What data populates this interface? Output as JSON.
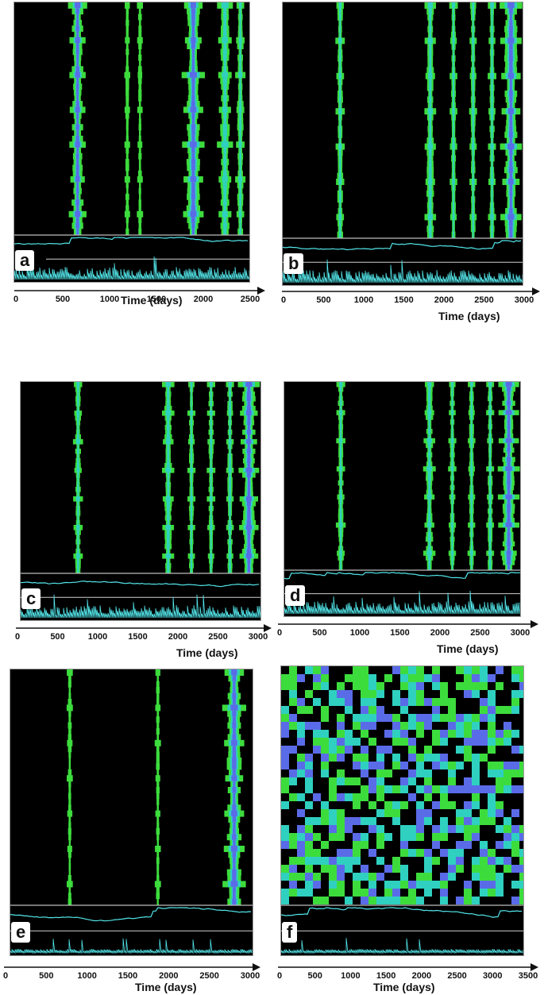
{
  "axis_title": "Time (days)",
  "colors": {
    "background": "#000000",
    "band_outer": "#3ddc3d",
    "band_mid": "#2fd0c0",
    "band_inner": "#5a6be8",
    "trace": "#53e6ea"
  },
  "chart_data": [
    {
      "type": "heatmap",
      "label": "a",
      "x_ticks": [
        "0",
        "500",
        "1000",
        "1500",
        "2000",
        "2500"
      ],
      "xlim": [
        0,
        2600
      ],
      "stripes": [
        {
          "x": 700,
          "w": 110,
          "intensity": 0.9
        },
        {
          "x": 1250,
          "w": 12,
          "intensity": 0.3
        },
        {
          "x": 1390,
          "w": 12,
          "intensity": 0.3
        },
        {
          "x": 1980,
          "w": 130,
          "intensity": 1.0
        },
        {
          "x": 2330,
          "w": 90,
          "intensity": 0.8
        },
        {
          "x": 2500,
          "w": 60,
          "intensity": 0.7
        }
      ]
    },
    {
      "type": "heatmap",
      "label": "b",
      "x_ticks": [
        "0",
        "500",
        "1000",
        "1500",
        "2000",
        "2500",
        "3000"
      ],
      "xlim": [
        0,
        3300
      ],
      "stripes": [
        {
          "x": 790,
          "w": 70,
          "intensity": 0.7
        },
        {
          "x": 2030,
          "w": 90,
          "intensity": 0.8
        },
        {
          "x": 2350,
          "w": 60,
          "intensity": 0.7
        },
        {
          "x": 2620,
          "w": 60,
          "intensity": 0.7
        },
        {
          "x": 2880,
          "w": 60,
          "intensity": 0.8
        },
        {
          "x": 3140,
          "w": 160,
          "intensity": 1.0
        }
      ]
    },
    {
      "type": "heatmap",
      "label": "c",
      "x_ticks": [
        "0",
        "500",
        "1000",
        "1500",
        "2000",
        "2500",
        "3000"
      ],
      "xlim": [
        0,
        3300
      ],
      "stripes": [
        {
          "x": 790,
          "w": 70,
          "intensity": 0.7
        },
        {
          "x": 2030,
          "w": 90,
          "intensity": 0.8
        },
        {
          "x": 2350,
          "w": 60,
          "intensity": 0.7
        },
        {
          "x": 2620,
          "w": 60,
          "intensity": 0.7
        },
        {
          "x": 2880,
          "w": 60,
          "intensity": 0.8
        },
        {
          "x": 3140,
          "w": 160,
          "intensity": 1.0
        }
      ]
    },
    {
      "type": "heatmap",
      "label": "d",
      "x_ticks": [
        "0",
        "500",
        "1000",
        "1500",
        "2000",
        "2500",
        "3000"
      ],
      "xlim": [
        0,
        3300
      ],
      "stripes": [
        {
          "x": 790,
          "w": 70,
          "intensity": 0.7
        },
        {
          "x": 2030,
          "w": 90,
          "intensity": 0.8
        },
        {
          "x": 2350,
          "w": 60,
          "intensity": 0.7
        },
        {
          "x": 2620,
          "w": 60,
          "intensity": 0.7
        },
        {
          "x": 2880,
          "w": 60,
          "intensity": 0.8
        },
        {
          "x": 3140,
          "w": 160,
          "intensity": 1.0
        }
      ]
    },
    {
      "type": "heatmap",
      "label": "e",
      "x_ticks": [
        "0",
        "500",
        "1000",
        "1500",
        "2000",
        "2500",
        "3000"
      ],
      "xlim": [
        0,
        3300
      ],
      "stripes": [
        {
          "x": 810,
          "w": 20,
          "intensity": 0.4
        },
        {
          "x": 2010,
          "w": 20,
          "intensity": 0.4
        },
        {
          "x": 3050,
          "w": 170,
          "intensity": 1.0
        }
      ]
    },
    {
      "type": "heatmap",
      "label": "f",
      "x_ticks": [
        "0",
        "500",
        "1000",
        "1500",
        "2000",
        "2500",
        "3000",
        "3500"
      ],
      "xlim": [
        0,
        3700
      ],
      "stripes": []
    }
  ]
}
